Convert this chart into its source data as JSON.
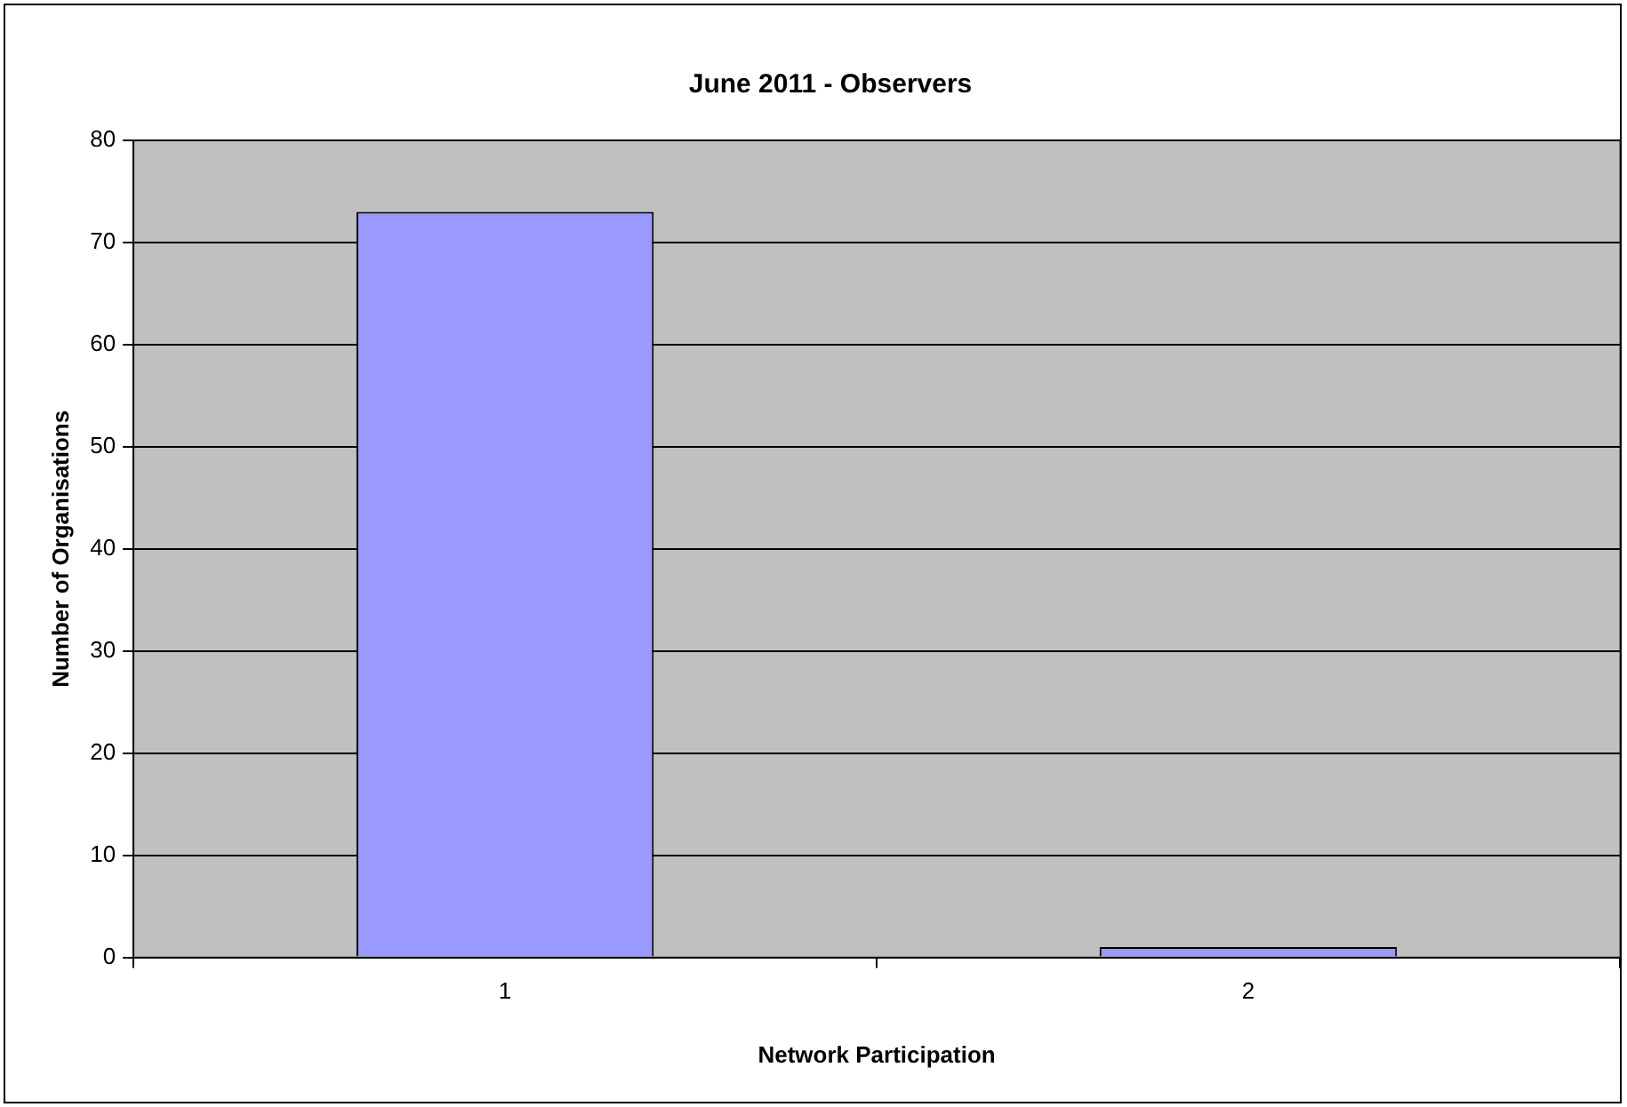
{
  "chart_data": {
    "type": "bar",
    "title": "June 2011 - Observers",
    "xlabel": "Network Participation",
    "ylabel": "Number of Organisations",
    "categories": [
      "1",
      "2"
    ],
    "values": [
      73,
      1
    ],
    "color": "#9999ff",
    "ylim": [
      0,
      80
    ],
    "yticks": [
      0,
      10,
      20,
      30,
      40,
      50,
      60,
      70,
      80
    ],
    "grid": "y",
    "legend": false
  }
}
